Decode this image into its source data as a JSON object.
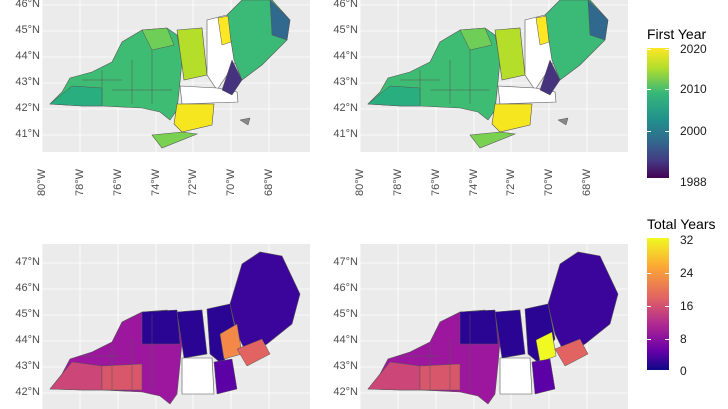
{
  "top_left": {
    "y_labels": [
      "46°N",
      "45°N",
      "44°N",
      "43°N",
      "42°N",
      "41°N"
    ],
    "x_labels": [
      "80°W",
      "78°W",
      "76°W",
      "74°W",
      "72°W",
      "70°W",
      "68°W"
    ]
  },
  "top_right": {
    "y_labels": [
      "46°N",
      "45°N",
      "44°N",
      "43°N",
      "42°N",
      "41°N"
    ],
    "x_labels": [
      "80°W",
      "78°W",
      "76°W",
      "74°W",
      "72°W",
      "70°W",
      "68°W"
    ]
  },
  "bottom_left": {
    "y_labels": [
      "47°N",
      "46°N",
      "45°N",
      "44°N",
      "43°N",
      "42°N"
    ]
  },
  "bottom_right": {
    "y_labels": [
      "47°N",
      "46°N",
      "45°N",
      "44°N",
      "43°N",
      "42°N"
    ]
  },
  "legend_first_year": {
    "title": "First Year",
    "labels": [
      "2020",
      "2010",
      "2000",
      "1988"
    ],
    "colors": [
      "#fde725",
      "#35b779",
      "#21918c",
      "#31688e",
      "#443983",
      "#440154"
    ]
  },
  "legend_total_years": {
    "title": "Total Years",
    "labels": [
      "32",
      "24",
      "16",
      "8",
      "0"
    ],
    "colors": [
      "#fcfd5f",
      "#fca636",
      "#e16462",
      "#b12a90",
      "#6a00a8",
      "#0d0887"
    ]
  }
}
